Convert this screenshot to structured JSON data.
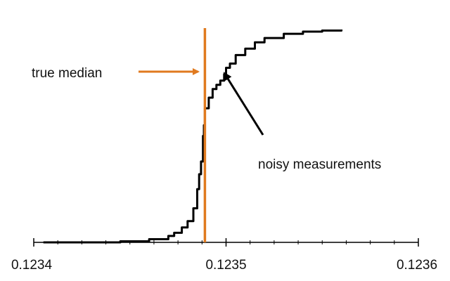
{
  "chart_data": {
    "type": "line",
    "title": "",
    "xlabel": "",
    "ylabel": "",
    "xlim": [
      0.1234,
      0.1236
    ],
    "ylim": [
      0,
      1
    ],
    "grid": false,
    "x_tick_labels": [
      "0.1234",
      "0.1235",
      "0.1236"
    ],
    "x_ticks_major": [
      0.1234,
      0.1235,
      0.1236
    ],
    "x_ticks_minor": [
      0.1234125,
      0.123425,
      0.1234375,
      0.12345,
      0.1234625,
      0.123475,
      0.1234875,
      0.1235125,
      0.123525,
      0.1235375,
      0.12355,
      0.1235625,
      0.123575,
      0.1235875
    ],
    "series": [
      {
        "color": "#000000",
        "x": [
          0.123405,
          0.12343,
          0.123445,
          0.12346,
          0.12347,
          0.123473,
          0.123477,
          0.12348,
          0.123483,
          0.123485,
          0.123486,
          0.123487,
          0.123488,
          0.1234885,
          0.123489,
          0.123491,
          0.123493,
          0.123495,
          0.123497,
          0.123499,
          0.1235,
          0.123502,
          0.123505,
          0.12351,
          0.123515,
          0.12352,
          0.12353,
          0.12354,
          0.12355,
          0.12356
        ],
        "y": [
          0.0,
          0.0,
          0.005,
          0.015,
          0.03,
          0.045,
          0.07,
          0.1,
          0.16,
          0.25,
          0.32,
          0.38,
          0.5,
          0.55,
          0.63,
          0.68,
          0.72,
          0.74,
          0.76,
          0.79,
          0.82,
          0.84,
          0.88,
          0.91,
          0.94,
          0.96,
          0.98,
          0.99,
          0.995,
          1.0
        ]
      }
    ],
    "reference_line": {
      "x": 0.123489,
      "color": "#E07A1F"
    },
    "annotations": [
      {
        "text": "true median",
        "color": "#E07A1F"
      },
      {
        "text": "noisy measurements",
        "color": "#000000"
      }
    ]
  }
}
